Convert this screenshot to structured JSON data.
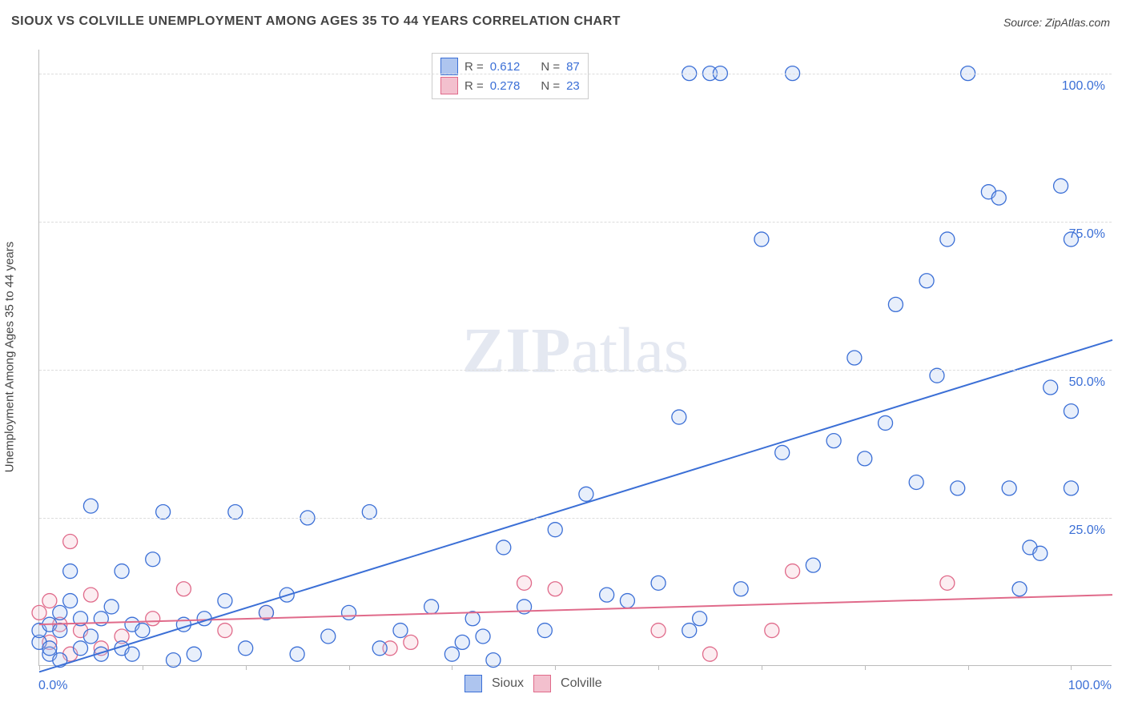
{
  "title": "SIOUX VS COLVILLE UNEMPLOYMENT AMONG AGES 35 TO 44 YEARS CORRELATION CHART",
  "source": "Source: ZipAtlas.com",
  "y_axis_title": "Unemployment Among Ages 35 to 44 years",
  "watermark_zip": "ZIP",
  "watermark_atlas": "atlas",
  "chart": {
    "type": "scatter",
    "background_color": "#ffffff",
    "grid_color": "#dddddd",
    "axis_color": "#bbbbbb",
    "tick_label_color": "#3b6fd6",
    "tick_fontsize": 16,
    "title_fontsize": 16,
    "title_color": "#444444",
    "xlim": [
      0,
      104
    ],
    "ylim": [
      0,
      104
    ],
    "yticks": [
      25,
      50,
      75,
      100
    ],
    "ytick_labels": [
      "25.0%",
      "50.0%",
      "75.0%",
      "100.0%"
    ],
    "xticks": [
      0,
      10,
      20,
      30,
      40,
      50,
      60,
      70,
      80,
      90,
      100
    ],
    "x_label_min": "0.0%",
    "x_label_max": "100.0%",
    "marker_radius": 9,
    "marker_stroke_width": 1.3,
    "marker_fill_opacity": 0.28,
    "line_width": 2,
    "series": [
      {
        "name": "Sioux",
        "color": "#3b6fd6",
        "fill": "#aec5ef",
        "R": "0.612",
        "N": "87",
        "trend": {
          "x1": 0,
          "y1": -1,
          "x2": 104,
          "y2": 55
        },
        "points": [
          [
            0,
            4
          ],
          [
            0,
            6
          ],
          [
            1,
            2
          ],
          [
            1,
            7
          ],
          [
            1,
            3
          ],
          [
            2,
            9
          ],
          [
            2,
            1
          ],
          [
            2,
            6
          ],
          [
            3,
            11
          ],
          [
            3,
            16
          ],
          [
            4,
            3
          ],
          [
            4,
            8
          ],
          [
            5,
            27
          ],
          [
            5,
            5
          ],
          [
            6,
            2
          ],
          [
            6,
            8
          ],
          [
            7,
            10
          ],
          [
            8,
            3
          ],
          [
            8,
            16
          ],
          [
            9,
            2
          ],
          [
            9,
            7
          ],
          [
            10,
            6
          ],
          [
            11,
            18
          ],
          [
            12,
            26
          ],
          [
            13,
            1
          ],
          [
            14,
            7
          ],
          [
            15,
            2
          ],
          [
            16,
            8
          ],
          [
            18,
            11
          ],
          [
            19,
            26
          ],
          [
            20,
            3
          ],
          [
            22,
            9
          ],
          [
            24,
            12
          ],
          [
            25,
            2
          ],
          [
            26,
            25
          ],
          [
            28,
            5
          ],
          [
            30,
            9
          ],
          [
            32,
            26
          ],
          [
            33,
            3
          ],
          [
            35,
            6
          ],
          [
            38,
            10
          ],
          [
            40,
            2
          ],
          [
            41,
            4
          ],
          [
            42,
            8
          ],
          [
            43,
            5
          ],
          [
            44,
            1
          ],
          [
            45,
            20
          ],
          [
            47,
            10
          ],
          [
            50,
            23
          ],
          [
            53,
            29
          ],
          [
            55,
            12
          ],
          [
            57,
            11
          ],
          [
            60,
            14
          ],
          [
            62,
            42
          ],
          [
            63,
            100
          ],
          [
            64,
            8
          ],
          [
            65,
            100
          ],
          [
            66,
            100
          ],
          [
            68,
            13
          ],
          [
            70,
            72
          ],
          [
            72,
            36
          ],
          [
            73,
            100
          ],
          [
            75,
            17
          ],
          [
            77,
            38
          ],
          [
            79,
            52
          ],
          [
            80,
            35
          ],
          [
            82,
            41
          ],
          [
            83,
            61
          ],
          [
            85,
            31
          ],
          [
            86,
            65
          ],
          [
            87,
            49
          ],
          [
            88,
            72
          ],
          [
            89,
            30
          ],
          [
            90,
            100
          ],
          [
            92,
            80
          ],
          [
            93,
            79
          ],
          [
            94,
            30
          ],
          [
            95,
            13
          ],
          [
            96,
            20
          ],
          [
            97,
            19
          ],
          [
            98,
            47
          ],
          [
            99,
            81
          ],
          [
            100,
            30
          ],
          [
            100,
            43
          ],
          [
            100,
            72
          ],
          [
            63,
            6
          ],
          [
            49,
            6
          ]
        ]
      },
      {
        "name": "Colville",
        "color": "#e06a8a",
        "fill": "#f3c0ce",
        "R": "0.278",
        "N": "23",
        "trend": {
          "x1": 0,
          "y1": 7,
          "x2": 104,
          "y2": 12
        },
        "points": [
          [
            0,
            9
          ],
          [
            1,
            4
          ],
          [
            1,
            11
          ],
          [
            2,
            7
          ],
          [
            3,
            2
          ],
          [
            3,
            21
          ],
          [
            4,
            6
          ],
          [
            5,
            12
          ],
          [
            6,
            3
          ],
          [
            8,
            5
          ],
          [
            11,
            8
          ],
          [
            14,
            13
          ],
          [
            18,
            6
          ],
          [
            22,
            9
          ],
          [
            34,
            3
          ],
          [
            36,
            4
          ],
          [
            47,
            14
          ],
          [
            50,
            13
          ],
          [
            60,
            6
          ],
          [
            65,
            2
          ],
          [
            73,
            16
          ],
          [
            71,
            6
          ],
          [
            88,
            14
          ]
        ]
      }
    ]
  },
  "legend_top": {
    "R_label": "R =",
    "N_label": "N ="
  },
  "legend_bottom": {
    "items": [
      "Sioux",
      "Colville"
    ]
  }
}
